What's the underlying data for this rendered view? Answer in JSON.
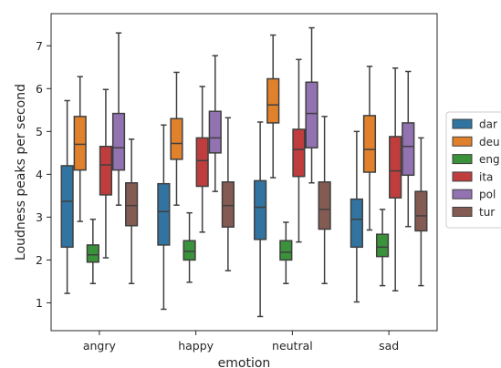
{
  "chart_data": {
    "type": "box",
    "xlabel": "emotion",
    "ylabel": "Loudness peaks per second",
    "ylim": [
      0.35,
      7.75
    ],
    "yticks": [
      1,
      2,
      3,
      4,
      5,
      6,
      7
    ],
    "categories": [
      "angry",
      "happy",
      "neutral",
      "sad"
    ],
    "legend_position": "right (clipped at image edge)",
    "series": [
      {
        "name": "dar",
        "color": "#3274a1",
        "boxes": [
          {
            "whislo": 1.22,
            "q1": 2.3,
            "med": 3.37,
            "q3": 4.2,
            "whishi": 5.72
          },
          {
            "whislo": 0.85,
            "q1": 2.35,
            "med": 3.13,
            "q3": 3.78,
            "whishi": 5.15
          },
          {
            "whislo": 0.68,
            "q1": 2.48,
            "med": 3.23,
            "q3": 3.85,
            "whishi": 5.22
          },
          {
            "whislo": 1.02,
            "q1": 2.3,
            "med": 2.95,
            "q3": 3.42,
            "whishi": 5.0
          }
        ]
      },
      {
        "name": "deu",
        "color": "#e1812c",
        "boxes": [
          {
            "whislo": 2.9,
            "q1": 4.1,
            "med": 4.7,
            "q3": 5.35,
            "whishi": 6.28
          },
          {
            "whislo": 3.28,
            "q1": 4.35,
            "med": 4.72,
            "q3": 5.3,
            "whishi": 6.38
          },
          {
            "whislo": 3.92,
            "q1": 5.2,
            "med": 5.62,
            "q3": 6.23,
            "whishi": 7.25
          },
          {
            "whislo": 2.7,
            "q1": 4.05,
            "med": 4.58,
            "q3": 5.37,
            "whishi": 6.52
          }
        ]
      },
      {
        "name": "eng",
        "color": "#3a923a",
        "boxes": [
          {
            "whislo": 1.45,
            "q1": 1.95,
            "med": 2.12,
            "q3": 2.35,
            "whishi": 2.95
          },
          {
            "whislo": 1.48,
            "q1": 2.0,
            "med": 2.2,
            "q3": 2.45,
            "whishi": 3.1
          },
          {
            "whislo": 1.45,
            "q1": 2.0,
            "med": 2.18,
            "q3": 2.45,
            "whishi": 2.88
          },
          {
            "whislo": 1.4,
            "q1": 2.08,
            "med": 2.3,
            "q3": 2.6,
            "whishi": 3.18
          }
        ]
      },
      {
        "name": "ita",
        "color": "#c03d3e",
        "boxes": [
          {
            "whislo": 2.05,
            "q1": 3.52,
            "med": 4.22,
            "q3": 4.65,
            "whishi": 5.98
          },
          {
            "whislo": 2.65,
            "q1": 3.72,
            "med": 4.32,
            "q3": 4.85,
            "whishi": 6.05
          },
          {
            "whislo": 2.42,
            "q1": 3.95,
            "med": 4.58,
            "q3": 5.05,
            "whishi": 6.68
          },
          {
            "whislo": 1.28,
            "q1": 3.45,
            "med": 4.08,
            "q3": 4.88,
            "whishi": 6.48
          }
        ]
      },
      {
        "name": "pol",
        "color": "#9372b2",
        "boxes": [
          {
            "whislo": 3.28,
            "q1": 4.1,
            "med": 4.62,
            "q3": 5.42,
            "whishi": 7.3
          },
          {
            "whislo": 3.6,
            "q1": 4.5,
            "med": 4.85,
            "q3": 5.47,
            "whishi": 6.77
          },
          {
            "whislo": 3.8,
            "q1": 4.62,
            "med": 5.42,
            "q3": 6.15,
            "whishi": 7.42
          },
          {
            "whislo": 2.78,
            "q1": 3.98,
            "med": 4.65,
            "q3": 5.2,
            "whishi": 6.4
          }
        ]
      },
      {
        "name": "tur",
        "color": "#845b53",
        "boxes": [
          {
            "whislo": 1.45,
            "q1": 2.8,
            "med": 3.27,
            "q3": 3.8,
            "whishi": 4.82
          },
          {
            "whislo": 1.75,
            "q1": 2.77,
            "med": 3.27,
            "q3": 3.82,
            "whishi": 5.32
          },
          {
            "whislo": 1.45,
            "q1": 2.72,
            "med": 3.18,
            "q3": 3.82,
            "whishi": 5.35
          },
          {
            "whislo": 1.4,
            "q1": 2.68,
            "med": 3.03,
            "q3": 3.6,
            "whishi": 4.85
          }
        ]
      }
    ]
  }
}
